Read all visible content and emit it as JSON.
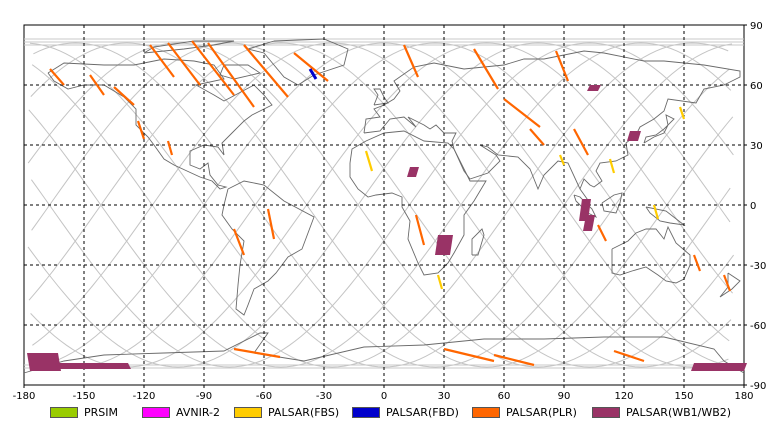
{
  "chart_data": {
    "type": "map",
    "projection": "equirectangular",
    "x_range": [
      -180,
      180
    ],
    "y_range": [
      -90,
      90
    ],
    "x_ticks": [
      "-180",
      "-150",
      "-120",
      "-90",
      "-60",
      "-30",
      "0",
      "30",
      "60",
      "90",
      "120",
      "150",
      "180"
    ],
    "y_ticks": [
      "90",
      "60",
      "30",
      "0",
      "-30",
      "-60",
      "-90"
    ],
    "grid": "dashed, every 30 degrees",
    "legend": [
      {
        "label": "PRSIM",
        "color": "#99cc00"
      },
      {
        "label": "AVNIR-2",
        "color": "#ff00ff"
      },
      {
        "label": "PALSAR(FBS)",
        "color": "#ffcc00"
      },
      {
        "label": "PALSAR(FBD)",
        "color": "#0000cc"
      },
      {
        "label": "PALSAR(PLR)",
        "color": "#ff6600"
      },
      {
        "label": "PALSAR(WB1/WB2)",
        "color": "#993366"
      }
    ],
    "legend_position": "bottom",
    "wb_scenes": [
      {
        "lon": [
          -177,
          -163
        ],
        "lat": [
          -83,
          -74
        ]
      },
      {
        "lon": [
          -163,
          -128
        ],
        "lat": [
          -82,
          -79
        ]
      },
      {
        "lon": [
          103,
          107
        ],
        "lat": [
          60,
          57
        ]
      },
      {
        "lon": [
          123,
          127
        ],
        "lat": [
          37,
          32
        ]
      },
      {
        "lon": [
          13,
          16
        ],
        "lat": [
          19,
          14
        ]
      },
      {
        "lon": [
          99,
          102
        ],
        "lat": [
          3,
          -8
        ]
      },
      {
        "lon": [
          101,
          104
        ],
        "lat": [
          -5,
          -13
        ]
      },
      {
        "lon": [
          27,
          33
        ],
        "lat": [
          -15,
          -25
        ]
      },
      {
        "lon": [
          155,
          180
        ],
        "lat": [
          -79,
          -83
        ]
      }
    ],
    "fbd_passes": [
      {
        "lon": [
          -37,
          -34
        ],
        "lat": [
          68,
          63
        ]
      }
    ],
    "fbs_passes": [
      {
        "lon": [
          -9,
          -6
        ],
        "lat": [
          27,
          17
        ]
      },
      {
        "lon": [
          27,
          29
        ],
        "lat": [
          -35,
          -42
        ]
      },
      {
        "lon": [
          148,
          150
        ],
        "lat": [
          49,
          43
        ]
      },
      {
        "lon": [
          88,
          90
        ],
        "lat": [
          25,
          20
        ]
      },
      {
        "lon": [
          113,
          115
        ],
        "lat": [
          23,
          16
        ]
      },
      {
        "lon": [
          135,
          137
        ],
        "lat": [
          0,
          -7
        ]
      }
    ],
    "plr_passes": [
      {
        "lon": [
          -167,
          -160
        ],
        "lat": [
          68,
          60
        ]
      },
      {
        "lon": [
          -147,
          -140
        ],
        "lat": [
          65,
          55
        ]
      },
      {
        "lon": [
          -135,
          -125
        ],
        "lat": [
          59,
          50
        ]
      },
      {
        "lon": [
          -117,
          -105
        ],
        "lat": [
          80,
          64
        ]
      },
      {
        "lon": [
          -108,
          -92
        ],
        "lat": [
          81,
          60
        ]
      },
      {
        "lon": [
          -96,
          -75
        ],
        "lat": [
          82,
          55
        ]
      },
      {
        "lon": [
          -88,
          -65
        ],
        "lat": [
          81,
          49
        ]
      },
      {
        "lon": [
          -70,
          -48
        ],
        "lat": [
          80,
          54
        ]
      },
      {
        "lon": [
          -45,
          -28
        ],
        "lat": [
          76,
          62
        ]
      },
      {
        "lon": [
          -123,
          -120
        ],
        "lat": [
          42,
          33
        ]
      },
      {
        "lon": [
          -108,
          -106
        ],
        "lat": [
          32,
          25
        ]
      },
      {
        "lon": [
          -75,
          -70
        ],
        "lat": [
          -12,
          -25
        ]
      },
      {
        "lon": [
          -58,
          -55
        ],
        "lat": [
          -2,
          -17
        ]
      },
      {
        "lon": [
          10,
          17
        ],
        "lat": [
          80,
          64
        ]
      },
      {
        "lon": [
          45,
          57
        ],
        "lat": [
          78,
          58
        ]
      },
      {
        "lon": [
          86,
          92
        ],
        "lat": [
          77,
          62
        ]
      },
      {
        "lon": [
          60,
          78
        ],
        "lat": [
          53,
          39
        ]
      },
      {
        "lon": [
          73,
          80
        ],
        "lat": [
          38,
          30
        ]
      },
      {
        "lon": [
          95,
          102
        ],
        "lat": [
          38,
          25
        ]
      },
      {
        "lon": [
          16,
          20
        ],
        "lat": [
          -5,
          -20
        ]
      },
      {
        "lon": [
          107,
          111
        ],
        "lat": [
          -10,
          -18
        ]
      },
      {
        "lon": [
          155,
          158
        ],
        "lat": [
          -25,
          -33
        ]
      },
      {
        "lon": [
          170,
          173
        ],
        "lat": [
          -35,
          -43
        ]
      },
      {
        "lon": [
          -75,
          -52
        ],
        "lat": [
          -72,
          -76
        ]
      },
      {
        "lon": [
          30,
          55
        ],
        "lat": [
          -72,
          -78
        ]
      },
      {
        "lon": [
          55,
          75
        ],
        "lat": [
          -75,
          -80
        ]
      },
      {
        "lon": [
          115,
          130
        ],
        "lat": [
          -73,
          -78
        ]
      }
    ]
  }
}
